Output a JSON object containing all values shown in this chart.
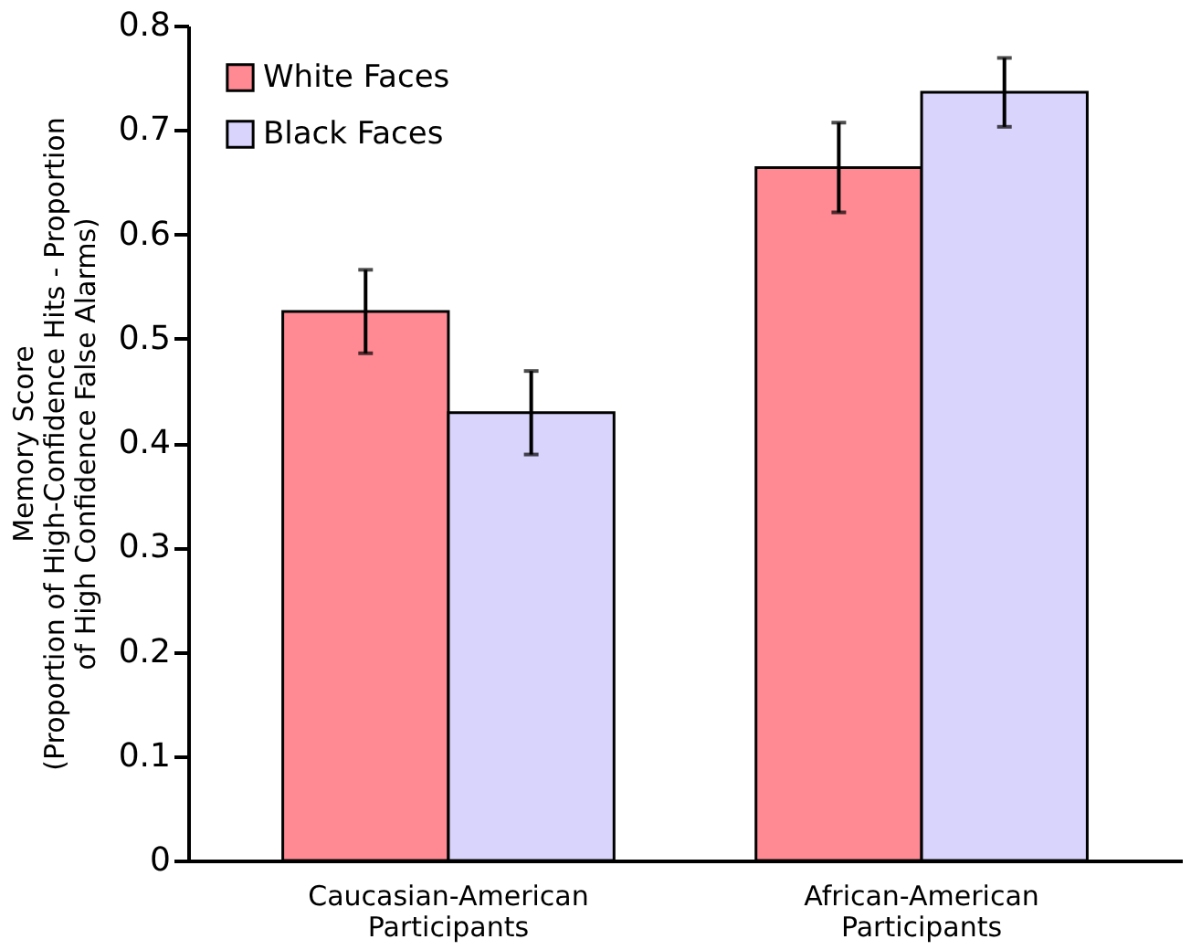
{
  "chart_data": {
    "type": "bar",
    "ylabel": "Memory Score\n(Proportion of High-Confidence Hits - Proportion\nof High Confidence False Alarms)",
    "categories": [
      "Caucasian-American\nParticipants",
      "African-American\nParticipants"
    ],
    "series": [
      {
        "name": "White Faces",
        "color": "#ff8a94",
        "values": [
          0.526,
          0.664
        ],
        "errors": [
          0.04,
          0.043
        ]
      },
      {
        "name": "Black Faces",
        "color": "#d9d4fc",
        "values": [
          0.429,
          0.736
        ],
        "errors": [
          0.04,
          0.033
        ]
      }
    ],
    "ylim": [
      0,
      0.8
    ],
    "yticks": [
      0,
      0.1,
      0.2,
      0.3,
      0.4,
      0.5,
      0.6,
      0.7,
      0.8
    ],
    "grid": false,
    "legend": "top left"
  }
}
